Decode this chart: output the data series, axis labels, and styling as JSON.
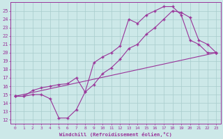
{
  "xlabel": "Windchill (Refroidissement éolien,°C)",
  "xlim": [
    -0.5,
    23.5
  ],
  "ylim": [
    11.5,
    26.0
  ],
  "yticks": [
    12,
    13,
    14,
    15,
    16,
    17,
    18,
    19,
    20,
    21,
    22,
    23,
    24,
    25
  ],
  "xticks": [
    0,
    1,
    2,
    3,
    4,
    5,
    6,
    7,
    8,
    9,
    10,
    11,
    12,
    13,
    14,
    15,
    16,
    17,
    18,
    19,
    20,
    21,
    22,
    23
  ],
  "bg_color": "#cce8e8",
  "grid_color": "#a8cccc",
  "line_color": "#993399",
  "line1_x": [
    0,
    1,
    2,
    3,
    4,
    5,
    6,
    7,
    8,
    9,
    10,
    11,
    12,
    13,
    14,
    15,
    16,
    17,
    18,
    19,
    20,
    21,
    22,
    23
  ],
  "line1_y": [
    14.8,
    14.8,
    15.0,
    15.0,
    14.5,
    12.2,
    12.2,
    13.2,
    15.3,
    18.8,
    19.5,
    20.0,
    20.8,
    24.0,
    23.5,
    24.5,
    25.0,
    25.5,
    25.5,
    24.5,
    21.5,
    21.0,
    20.0,
    20.0
  ],
  "line2_x": [
    0,
    1,
    2,
    3,
    4,
    5,
    6,
    7,
    8,
    9,
    10,
    11,
    12,
    13,
    14,
    15,
    16,
    17,
    18,
    19,
    20,
    21,
    22,
    23
  ],
  "line2_y": [
    14.8,
    14.8,
    15.5,
    15.8,
    16.0,
    16.2,
    16.3,
    17.0,
    15.3,
    16.2,
    17.5,
    18.2,
    19.2,
    20.5,
    21.0,
    22.2,
    23.0,
    24.0,
    25.0,
    24.8,
    24.2,
    21.5,
    21.0,
    20.0
  ],
  "line3_x": [
    0,
    23
  ],
  "line3_y": [
    14.8,
    20.0
  ]
}
